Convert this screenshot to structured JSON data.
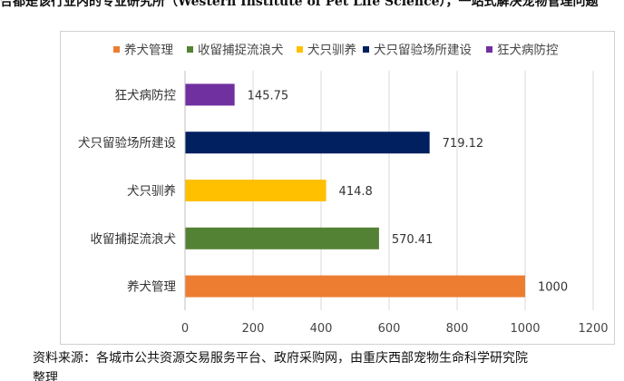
{
  "page": {
    "top_text": "合都是该行业内的专业研究所（Western Institute of Pet Life Science），一站式解决宠物管理问题",
    "source_text": "资料来源：各城市公共资源交易服务平台、政府采购网，由重庆西部宠物生命科学研究院",
    "bottom_fragment": "整理"
  },
  "chart_data": {
    "type": "bar",
    "orientation": "horizontal",
    "categories": [
      "狂犬病防控",
      "犬只留验场所建设",
      "犬只驯养",
      "收留捕捉流浪犬",
      "养犬管理"
    ],
    "values": [
      145.75,
      719.12,
      414.8,
      570.41,
      1000
    ],
    "data_labels": [
      "145.75",
      "719.12",
      "414.8",
      "570.41",
      "1000"
    ],
    "colors": [
      "#7030a0",
      "#002060",
      "#ffc000",
      "#548235",
      "#ed7d31"
    ],
    "legend": [
      {
        "name": "养犬管理",
        "color": "#ed7d31"
      },
      {
        "name": "收留捕捉流浪犬",
        "color": "#548235"
      },
      {
        "name": "犬只驯养",
        "color": "#ffc000"
      },
      {
        "name": "犬只留验场所建设",
        "color": "#002060"
      },
      {
        "name": "狂犬病防控",
        "color": "#7030a0"
      }
    ],
    "legend_position": "top",
    "xlim": [
      0,
      1200
    ],
    "xticks": [
      "0",
      "200",
      "400",
      "600",
      "800",
      "1000",
      "1200"
    ],
    "grid": true,
    "title": "",
    "xlabel": "",
    "ylabel": ""
  }
}
